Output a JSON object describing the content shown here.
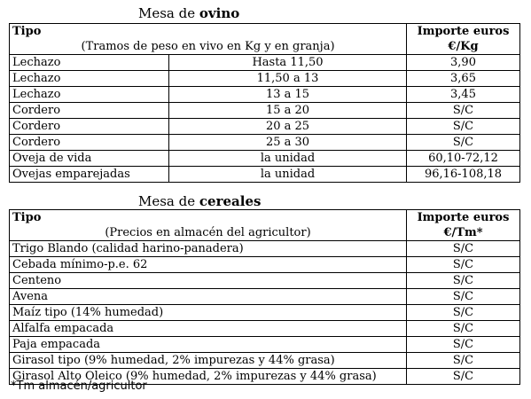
{
  "ovino": {
    "title_prefix": "Mesa de ",
    "title_bold": "ovino",
    "header": {
      "col1_title": "Tipo",
      "col1_sub": "(Tramos de peso en vivo en Kg y en granja)",
      "col2_title": "Importe euros",
      "col2_sub": "€/Kg"
    },
    "rows": [
      {
        "tipo": "Lechazo",
        "tramo": "Hasta 11,50",
        "importe": "3,90"
      },
      {
        "tipo": "Lechazo",
        "tramo": "11,50 a 13",
        "importe": "3,65"
      },
      {
        "tipo": "Lechazo",
        "tramo": "13 a 15",
        "importe": "3,45"
      },
      {
        "tipo": "Cordero",
        "tramo": "15 a 20",
        "importe": "S/C"
      },
      {
        "tipo": "Cordero",
        "tramo": "20 a 25",
        "importe": "S/C"
      },
      {
        "tipo": "Cordero",
        "tramo": "25 a 30",
        "importe": "S/C"
      },
      {
        "tipo": "Oveja de vida",
        "tramo": "la unidad",
        "importe": "60,10-72,12"
      },
      {
        "tipo": "Ovejas emparejadas",
        "tramo": "la unidad",
        "importe": "96,16-108,18"
      }
    ]
  },
  "cereales": {
    "title_prefix": "Mesa de ",
    "title_bold": "cereales",
    "header": {
      "col1_title": "Tipo",
      "col1_sub": "(Precios en almacén del agricultor)",
      "col2_title": "Importe euros",
      "col2_sub": "€/Tm*"
    },
    "rows": [
      {
        "tipo": "Trigo Blando (calidad harino-panadera)",
        "importe": "S/C"
      },
      {
        "tipo": "Cebada mínimo-p.e. 62",
        "importe": "S/C"
      },
      {
        "tipo": "Centeno",
        "importe": "S/C"
      },
      {
        "tipo": "Avena",
        "importe": "S/C"
      },
      {
        "tipo": "Maíz tipo (14% humedad)",
        "importe": "S/C"
      },
      {
        "tipo": "Alfalfa empacada",
        "importe": "S/C"
      },
      {
        "tipo": "Paja empacada",
        "importe": "S/C"
      },
      {
        "tipo": "Girasol tipo (9% humedad, 2% impurezas y 44% grasa)",
        "importe": "S/C"
      },
      {
        "tipo": "Girasol Alto Oleico (9% humedad, 2% impurezas y 44% grasa)",
        "importe": "S/C"
      }
    ],
    "footnote": "*Tm almacén/agricultor"
  }
}
